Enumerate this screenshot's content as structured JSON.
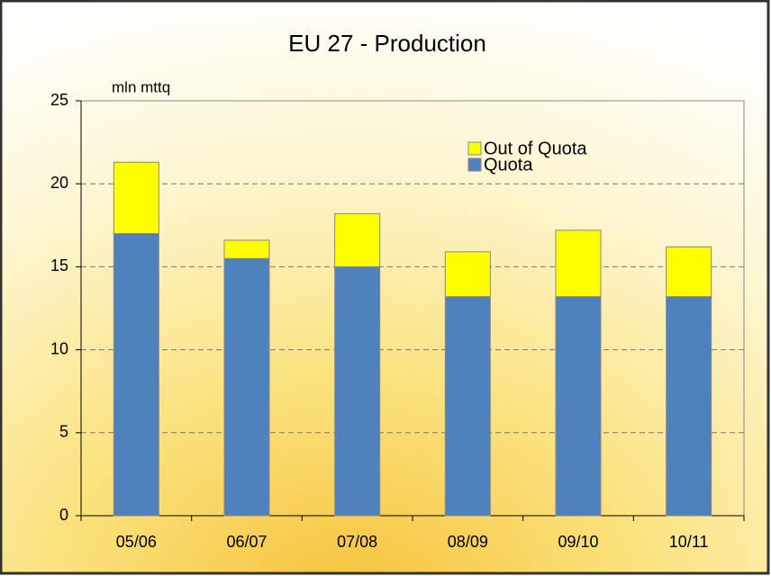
{
  "chart_data": {
    "type": "stacked_bar",
    "title": "EU 27 - Production",
    "y_label": "mln mttq",
    "categories": [
      "05/06",
      "06/07",
      "07/08",
      "08/09",
      "09/10",
      "10/11"
    ],
    "series": [
      {
        "name": "Quota",
        "color": "#4f81bd",
        "values": [
          17,
          15.5,
          15,
          13.2,
          13.2,
          13.2
        ]
      },
      {
        "name": "Out of Quota",
        "color": "#ffff00",
        "values": [
          4.3,
          1.1,
          3.2,
          2.7,
          4.0,
          3.0
        ]
      }
    ],
    "ylim": [
      0,
      25
    ],
    "yticks": [
      0,
      5,
      10,
      15,
      20,
      25
    ],
    "grid": true,
    "legend": "top-right"
  }
}
